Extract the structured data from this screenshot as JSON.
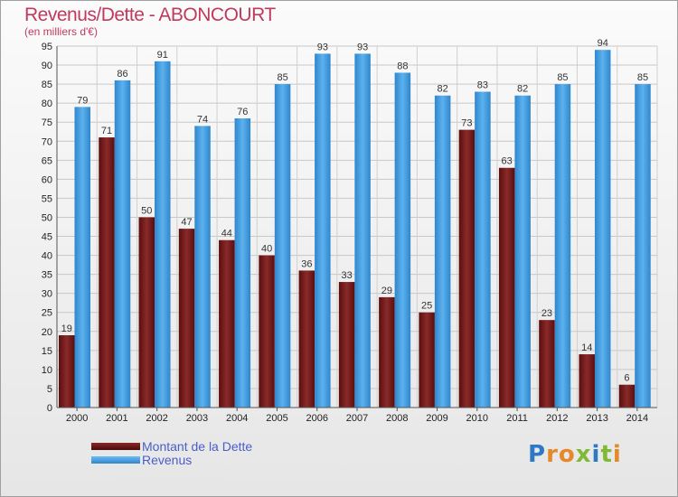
{
  "title": "Revenus/Dette - ABONCOURT",
  "subtitle": "(en milliers d'€)",
  "colors": {
    "debt": "#7a1a1a",
    "revenue": "#4aa3e6",
    "title": "#c03a60",
    "legend_text": "#4a5ec8"
  },
  "legend": {
    "items": [
      {
        "label": "Montant de la Dette",
        "color": "#7a1a1a"
      },
      {
        "label": "Revenus",
        "color": "#4aa3e6"
      }
    ]
  },
  "logo": {
    "letters": [
      {
        "char": "P",
        "color": "#2e78c4"
      },
      {
        "char": "r",
        "color": "#e6892a"
      },
      {
        "char": "o",
        "color": "#e6892a"
      },
      {
        "char": "x",
        "color": "#7fba34"
      },
      {
        "char": "i",
        "color": "#2e78c4"
      },
      {
        "char": "t",
        "color": "#7fba34"
      },
      {
        "char": "i",
        "color": "#e6892a"
      }
    ]
  },
  "chart_data": {
    "type": "bar",
    "title": "Revenus/Dette - ABONCOURT",
    "subtitle": "(en milliers d'€)",
    "xlabel": "",
    "ylabel": "",
    "ylim": [
      0,
      95
    ],
    "ytick_step": 5,
    "grid": true,
    "legend_position": "bottom-left",
    "categories": [
      "2000",
      "2001",
      "2002",
      "2003",
      "2004",
      "2005",
      "2006",
      "2007",
      "2008",
      "2009",
      "2010",
      "2011",
      "2012",
      "2013",
      "2014"
    ],
    "series": [
      {
        "name": "Montant de la Dette",
        "color": "#7a1a1a",
        "values": [
          19,
          71,
          50,
          47,
          44,
          40,
          36,
          33,
          29,
          25,
          73,
          63,
          23,
          14,
          6
        ]
      },
      {
        "name": "Revenus",
        "color": "#4aa3e6",
        "values": [
          79,
          86,
          91,
          74,
          76,
          85,
          93,
          93,
          88,
          82,
          83,
          82,
          85,
          94,
          85
        ]
      }
    ]
  }
}
